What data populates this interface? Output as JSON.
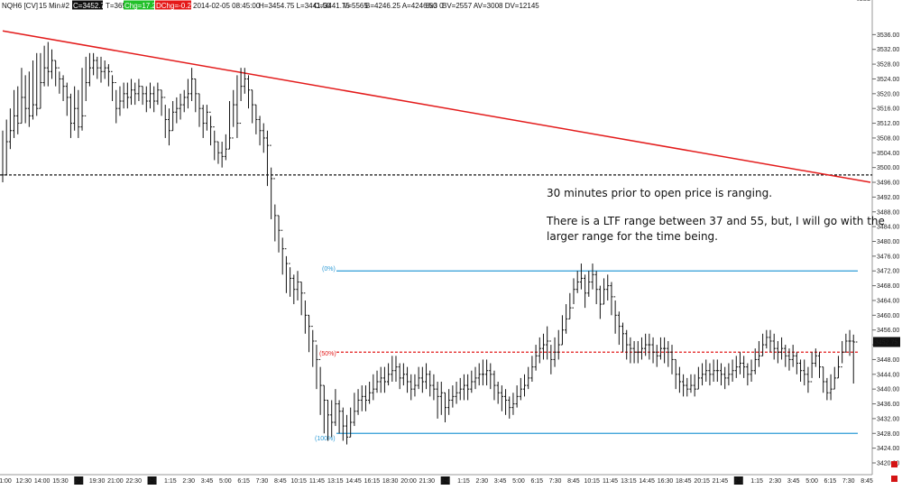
{
  "header": {
    "symbol": "NQH6 [CV]",
    "interval": "15 Min",
    "chart_num": "#2",
    "close": "C=3452.75",
    "ticks": "T=3653",
    "change": "Chg=17.25",
    "dchange": "DChg=-0.25",
    "datetime": "2014-02-05 08:45:00",
    "hilo": "H=3454.75 L=3441.50",
    "open": "O=3441.75",
    "volume": "V=5565",
    "bid_ask": "B=4246.25 A=4246.50",
    "extra": "8x3 0",
    "bv_av_dv": "BV=2557 AV=3008 DV=12145"
  },
  "colors": {
    "bar": "#111111",
    "trendline": "#e31b1b",
    "fib_line": "#2e9bd6",
    "fib_mid": "#e31b1b",
    "last_price_bg": "#111111",
    "change_bg": "#22c02a",
    "dchange_bg": "#e51919"
  },
  "notes": [
    "30 minutes prior to open price is ranging.",
    "There is a LTF range between 37 and 55, but, I will go with the",
    "larger range for the time being."
  ],
  "fib_labels": {
    "top": "(0%)",
    "mid": "(50%)",
    "bottom": "(100%)"
  },
  "last_price": "3452.75",
  "chart_data": {
    "type": "ohlc",
    "title": "",
    "ylim": [
      3420,
      3540
    ],
    "y_ticks": [
      "3536.00",
      "3532.00",
      "3528.00",
      "3524.00",
      "3520.00",
      "3516.00",
      "3512.00",
      "3508.00",
      "3504.00",
      "3500.00",
      "3496.00",
      "3492.00",
      "3488.00",
      "3484.00",
      "3480.00",
      "3476.00",
      "3472.00",
      "3468.00",
      "3464.00",
      "3460.00",
      "3456.00",
      "3452.00",
      "3448.00",
      "3444.00",
      "3440.00",
      "3436.00",
      "3432.00",
      "3428.00",
      "3424.00",
      "3420.00"
    ],
    "x_ticks": [
      "1:00",
      "12:30",
      "14:00",
      "15:30",
      "2-2",
      "19:30",
      "21:00",
      "22:30",
      "2-3",
      "1:15",
      "2:30",
      "3:45",
      "5:00",
      "6:15",
      "7:30",
      "8:45",
      "10:15",
      "11:45",
      "13:15",
      "14:45",
      "16:15",
      "18:30",
      "20:00",
      "21:30",
      "2-4",
      "1:15",
      "2:30",
      "3:45",
      "5:00",
      "6:15",
      "7:30",
      "8:45",
      "10:15",
      "11:45",
      "13:15",
      "14:45",
      "16:30",
      "18:45",
      "20:15",
      "21:45",
      "2-5",
      "1:15",
      "2:30",
      "3:45",
      "5:00",
      "6:15",
      "7:30",
      "8:45"
    ],
    "x_tick_boxes": [
      "2-2",
      "2-3",
      "2-4",
      "2-5"
    ],
    "horizontal_lines": [
      {
        "price": 3498.0,
        "style": "dashed",
        "color": "#111111"
      },
      {
        "price": 3472.0,
        "style": "solid",
        "color": "#2e9bd6",
        "label": "(0%)"
      },
      {
        "price": 3450.0,
        "style": "dashed",
        "color": "#e31b1b",
        "label": "(50%)"
      },
      {
        "price": 3428.0,
        "style": "solid",
        "color": "#2e9bd6",
        "label": "(100%)"
      }
    ],
    "trendline": {
      "from": [
        0,
        3537.0
      ],
      "to": [
        229,
        3496.0
      ]
    },
    "bars": {
      "count": 230,
      "close": [
        3498,
        3507,
        3510,
        3514,
        3512,
        3519,
        3516,
        3514,
        3517,
        3516,
        3523,
        3527,
        3526,
        3529,
        3527,
        3524,
        3522,
        3519,
        3512,
        3516,
        3511,
        3514,
        3523,
        3527,
        3529,
        3527,
        3526,
        3527,
        3526,
        3523,
        3516,
        3518,
        3520,
        3519,
        3521,
        3520,
        3522,
        3520,
        3518,
        3520,
        3518,
        3521,
        3519,
        3513,
        3510,
        3515,
        3516,
        3517,
        3519,
        3520,
        3524,
        3520,
        3516,
        3512,
        3515,
        3511,
        3507,
        3504,
        3503,
        3505,
        3508,
        3517,
        3512,
        3522,
        3524,
        3521,
        3517,
        3513,
        3510,
        3508,
        3506,
        3497,
        3487,
        3483,
        3478,
        3474,
        3470,
        3467,
        3469,
        3466,
        3460,
        3457,
        3453,
        3448,
        3441,
        3437,
        3433,
        3431,
        3436,
        3434,
        3430,
        3427,
        3431,
        3434,
        3437,
        3438,
        3437,
        3439,
        3440,
        3442,
        3443,
        3442,
        3444,
        3445,
        3446,
        3443,
        3444,
        3442,
        3440,
        3441,
        3443,
        3442,
        3444,
        3441,
        3440,
        3438,
        3439,
        3435,
        3437,
        3438,
        3439,
        3440,
        3441,
        3440,
        3442,
        3443,
        3444,
        3444,
        3445,
        3444,
        3441,
        3439,
        3438,
        3437,
        3435,
        3436,
        3438,
        3440,
        3441,
        3443,
        3446,
        3449,
        3451,
        3452,
        3453,
        3448,
        3450,
        3452,
        3456,
        3459,
        3462,
        3467,
        3469,
        3470,
        3466,
        3469,
        3471,
        3467,
        3463,
        3467,
        3468,
        3465,
        3460,
        3457,
        3455,
        3452,
        3451,
        3450,
        3450,
        3451,
        3452,
        3452,
        3450,
        3449,
        3451,
        3451,
        3450,
        3448,
        3444,
        3442,
        3441,
        3440,
        3441,
        3440,
        3443,
        3444,
        3445,
        3444,
        3445,
        3445,
        3444,
        3443,
        3444,
        3445,
        3446,
        3447,
        3446,
        3444,
        3445,
        3448,
        3449,
        3452,
        3454,
        3453,
        3451,
        3450,
        3451,
        3449,
        3448,
        3449,
        3447,
        3445,
        3444,
        3442,
        3447,
        3449,
        3446,
        3442,
        3439,
        3440,
        3443,
        3446,
        3450,
        3453,
        3453,
        3452.75
      ],
      "high": [
        3510,
        3513,
        3516,
        3521,
        3522,
        3527,
        3525,
        3526,
        3529,
        3531,
        3531,
        3533,
        3534,
        3532,
        3529,
        3526,
        3525,
        3523,
        3520,
        3522,
        3521,
        3527,
        3530,
        3531,
        3531,
        3530,
        3530,
        3529,
        3528,
        3525,
        3521,
        3522,
        3523,
        3523,
        3524,
        3523,
        3524,
        3522,
        3522,
        3523,
        3522,
        3523,
        3521,
        3517,
        3516,
        3518,
        3519,
        3520,
        3521,
        3524,
        3527,
        3524,
        3520,
        3517,
        3517,
        3514,
        3510,
        3507,
        3507,
        3509,
        3518,
        3521,
        3525,
        3527,
        3527,
        3525,
        3521,
        3517,
        3514,
        3512,
        3510,
        3500,
        3490,
        3487,
        3481,
        3476,
        3473,
        3471,
        3472,
        3469,
        3464,
        3460,
        3456,
        3452,
        3446,
        3441,
        3437,
        3437,
        3440,
        3437,
        3435,
        3433,
        3435,
        3439,
        3440,
        3441,
        3441,
        3442,
        3444,
        3445,
        3446,
        3446,
        3447,
        3449,
        3449,
        3447,
        3447,
        3446,
        3444,
        3444,
        3446,
        3446,
        3447,
        3445,
        3444,
        3442,
        3442,
        3439,
        3440,
        3441,
        3442,
        3443,
        3444,
        3444,
        3445,
        3446,
        3447,
        3448,
        3448,
        3447,
        3445,
        3442,
        3441,
        3440,
        3438,
        3439,
        3441,
        3443,
        3444,
        3446,
        3449,
        3452,
        3454,
        3455,
        3457,
        3452,
        3454,
        3456,
        3460,
        3463,
        3466,
        3470,
        3472,
        3474,
        3471,
        3472,
        3474,
        3472,
        3468,
        3470,
        3471,
        3469,
        3464,
        3461,
        3458,
        3456,
        3454,
        3453,
        3453,
        3454,
        3455,
        3455,
        3454,
        3452,
        3454,
        3454,
        3453,
        3452,
        3448,
        3446,
        3444,
        3443,
        3444,
        3444,
        3446,
        3447,
        3448,
        3447,
        3448,
        3448,
        3447,
        3446,
        3447,
        3448,
        3449,
        3450,
        3449,
        3447,
        3448,
        3451,
        3453,
        3455,
        3456,
        3456,
        3455,
        3453,
        3454,
        3452,
        3451,
        3452,
        3450,
        3448,
        3448,
        3446,
        3450,
        3451,
        3450,
        3446,
        3443,
        3444,
        3446,
        3449,
        3453,
        3455,
        3456,
        3454.75
      ],
      "low": [
        3496,
        3498,
        3505,
        3508,
        3509,
        3512,
        3512,
        3511,
        3513,
        3514,
        3516,
        3522,
        3522,
        3524,
        3522,
        3520,
        3518,
        3514,
        3508,
        3510,
        3508,
        3510,
        3518,
        3522,
        3525,
        3524,
        3523,
        3524,
        3522,
        3518,
        3512,
        3514,
        3516,
        3516,
        3517,
        3517,
        3518,
        3517,
        3515,
        3516,
        3515,
        3517,
        3514,
        3508,
        3506,
        3510,
        3512,
        3513,
        3515,
        3516,
        3518,
        3515,
        3511,
        3508,
        3510,
        3506,
        3502,
        3501,
        3500,
        3502,
        3505,
        3511,
        3508,
        3518,
        3520,
        3516,
        3512,
        3509,
        3506,
        3504,
        3495,
        3486,
        3480,
        3477,
        3471,
        3466,
        3465,
        3463,
        3464,
        3460,
        3455,
        3450,
        3446,
        3440,
        3433,
        3428,
        3426,
        3427,
        3430,
        3428,
        3426,
        3425,
        3427,
        3430,
        3433,
        3434,
        3434,
        3436,
        3437,
        3439,
        3439,
        3439,
        3441,
        3442,
        3442,
        3440,
        3441,
        3439,
        3437,
        3438,
        3440,
        3439,
        3440,
        3438,
        3437,
        3432,
        3433,
        3431,
        3433,
        3435,
        3436,
        3437,
        3437,
        3437,
        3439,
        3440,
        3441,
        3441,
        3441,
        3440,
        3437,
        3436,
        3434,
        3433,
        3432,
        3433,
        3435,
        3437,
        3438,
        3440,
        3442,
        3445,
        3447,
        3448,
        3448,
        3444,
        3446,
        3448,
        3452,
        3455,
        3459,
        3463,
        3466,
        3467,
        3462,
        3465,
        3467,
        3463,
        3459,
        3463,
        3464,
        3460,
        3455,
        3452,
        3450,
        3448,
        3447,
        3447,
        3447,
        3448,
        3449,
        3448,
        3447,
        3446,
        3448,
        3447,
        3446,
        3444,
        3440,
        3439,
        3438,
        3438,
        3439,
        3438,
        3440,
        3441,
        3442,
        3441,
        3442,
        3442,
        3441,
        3440,
        3441,
        3442,
        3443,
        3444,
        3443,
        3441,
        3442,
        3444,
        3446,
        3449,
        3451,
        3450,
        3448,
        3447,
        3448,
        3446,
        3445,
        3446,
        3444,
        3442,
        3441,
        3439,
        3443,
        3446,
        3443,
        3439,
        3437,
        3437,
        3440,
        3443,
        3447,
        3450,
        3449,
        3441.5
      ]
    }
  }
}
